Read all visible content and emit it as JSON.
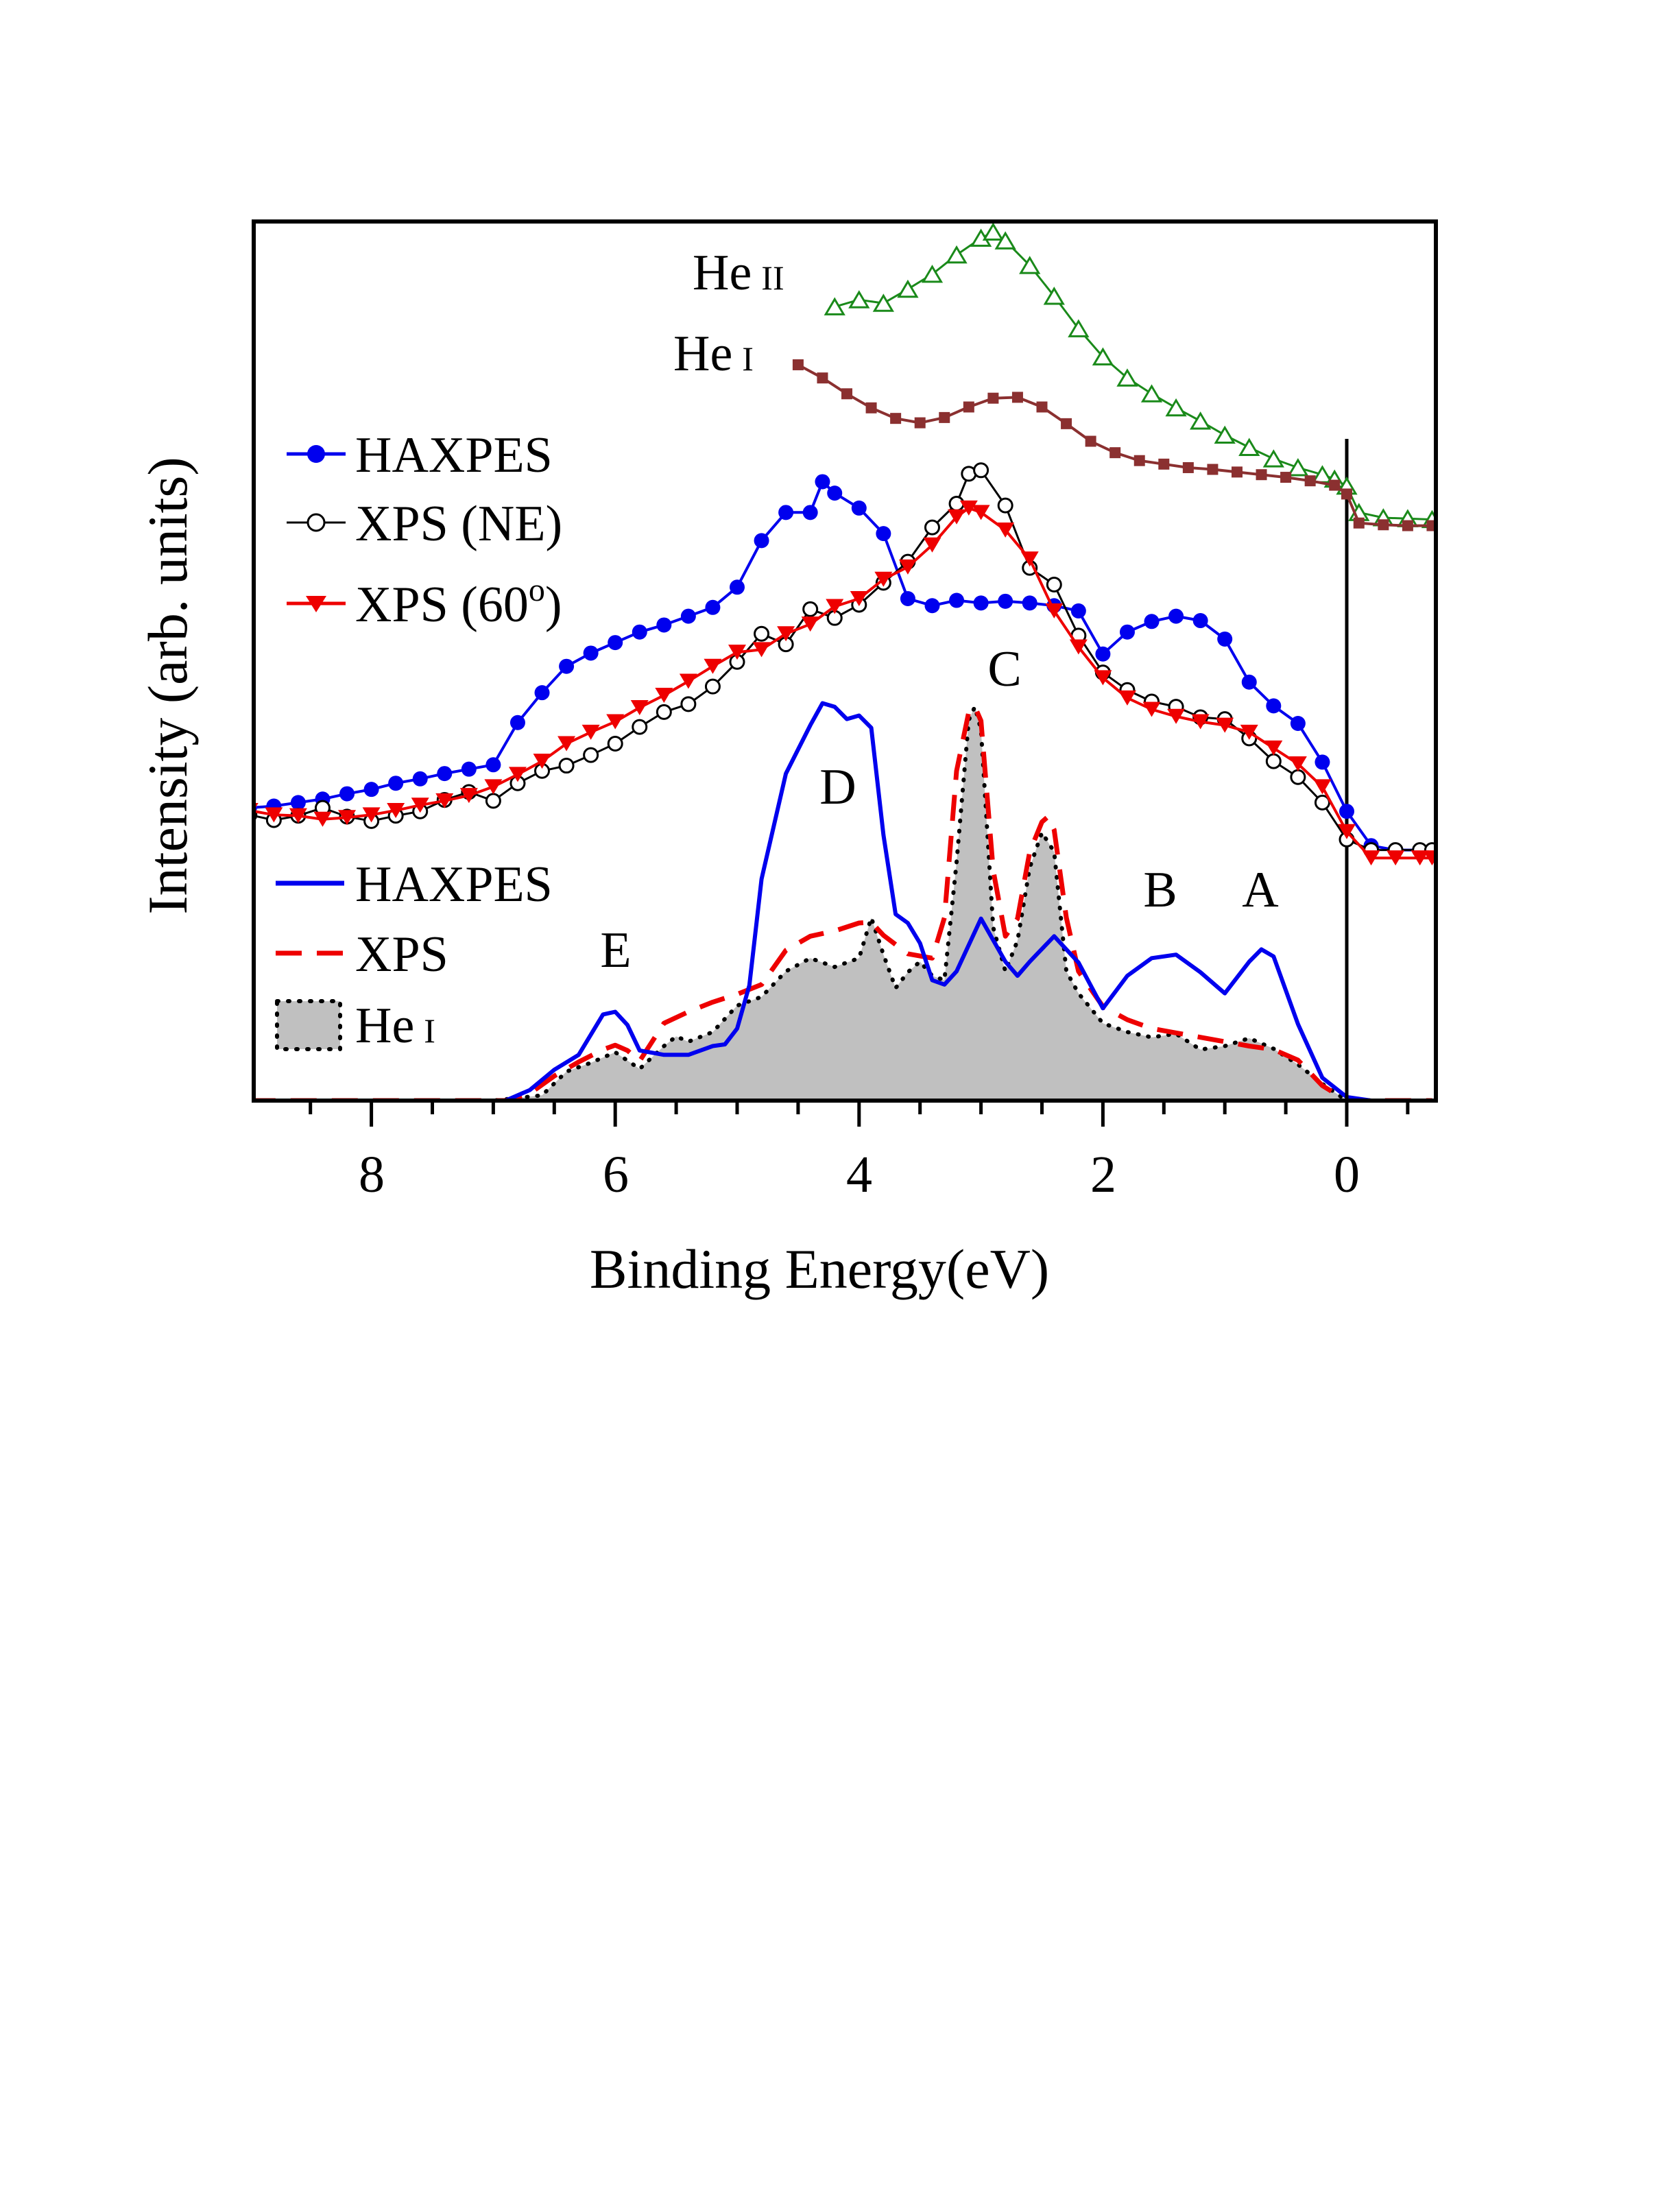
{
  "chart_data": {
    "type": "line",
    "xlabel": "Binding Energy(eV)",
    "ylabel": "Intensity (arb. units)",
    "xlim": [
      9.0,
      -0.7
    ],
    "ylim": [
      0,
      1
    ],
    "x_ticks": [
      8,
      6,
      4,
      2,
      0
    ],
    "x_tick_labels": [
      "8",
      "6",
      "4",
      "2",
      "0"
    ],
    "grid": false,
    "legend_experimental": {
      "position": "upper-left",
      "entries": [
        {
          "label": "HAXPES",
          "color": "#0000ee",
          "marker": "filled-circle"
        },
        {
          "label": "XPS (NE)",
          "color": "#000000",
          "marker": "open-circle"
        },
        {
          "label_main": "XPS (60",
          "label_sup": "o",
          "label_end": ")",
          "color": "#ee0000",
          "marker": "filled-triangle-down"
        }
      ]
    },
    "legend_theory": {
      "position": "lower-left",
      "entries": [
        {
          "label": "HAXPES",
          "color": "#0000ee",
          "style": "solid"
        },
        {
          "label": "XPS",
          "color": "#ee0000",
          "style": "dashed"
        },
        {
          "label_main": "He",
          "label_small": "I",
          "color": "#000000",
          "style": "dotted-filled-gray"
        }
      ]
    },
    "series_labels": [
      {
        "main": "He",
        "small": "II",
        "series": "He II"
      },
      {
        "main": "He",
        "small": "I",
        "series": "He I"
      }
    ],
    "peak_labels": [
      {
        "label": "A",
        "x": 0.72
      },
      {
        "label": "B",
        "x": 1.68
      },
      {
        "label": "C",
        "x": 2.85
      },
      {
        "label": "D",
        "x": 4.15
      },
      {
        "label": "E",
        "x": 6.0
      }
    ],
    "fermi_level": 0,
    "series": [
      {
        "name": "He II",
        "kind": "experimental",
        "color": "#1a8a1a",
        "marker": "open-triangle",
        "x": [
          4.2,
          4.0,
          3.8,
          3.6,
          3.4,
          3.2,
          3.0,
          2.9,
          2.8,
          2.6,
          2.4,
          2.2,
          2.0,
          1.8,
          1.6,
          1.4,
          1.2,
          1.0,
          0.8,
          0.6,
          0.4,
          0.2,
          0.1,
          0.0,
          -0.1,
          -0.3,
          -0.5,
          -0.7
        ],
        "y": [
          0.903,
          0.911,
          0.907,
          0.923,
          0.94,
          0.962,
          0.981,
          0.988,
          0.978,
          0.95,
          0.915,
          0.878,
          0.846,
          0.822,
          0.804,
          0.788,
          0.773,
          0.757,
          0.743,
          0.73,
          0.72,
          0.712,
          0.707,
          0.699,
          0.669,
          0.663,
          0.662,
          0.661
        ]
      },
      {
        "name": "He I",
        "kind": "experimental",
        "color": "#8b3030",
        "marker": "filled-square",
        "x": [
          4.5,
          4.3,
          4.1,
          3.9,
          3.7,
          3.5,
          3.3,
          3.1,
          2.9,
          2.7,
          2.5,
          2.3,
          2.1,
          1.9,
          1.7,
          1.5,
          1.3,
          1.1,
          0.9,
          0.7,
          0.5,
          0.3,
          0.1,
          0.0,
          -0.1,
          -0.3,
          -0.5,
          -0.7
        ],
        "y": [
          0.837,
          0.822,
          0.804,
          0.788,
          0.776,
          0.771,
          0.777,
          0.789,
          0.799,
          0.8,
          0.789,
          0.77,
          0.75,
          0.737,
          0.728,
          0.724,
          0.72,
          0.718,
          0.715,
          0.712,
          0.709,
          0.705,
          0.7,
          0.69,
          0.657,
          0.655,
          0.654,
          0.654
        ]
      },
      {
        "name": "HAXPES",
        "kind": "experimental",
        "color": "#0000ee",
        "marker": "filled-circle",
        "x": [
          9.0,
          8.8,
          8.6,
          8.4,
          8.2,
          8.0,
          7.8,
          7.6,
          7.4,
          7.2,
          7.0,
          6.8,
          6.6,
          6.4,
          6.2,
          6.0,
          5.8,
          5.6,
          5.4,
          5.2,
          5.0,
          4.8,
          4.6,
          4.4,
          4.3,
          4.2,
          4.0,
          3.8,
          3.6,
          3.4,
          3.2,
          3.0,
          2.8,
          2.6,
          2.4,
          2.2,
          2.0,
          1.8,
          1.6,
          1.4,
          1.2,
          1.0,
          0.8,
          0.6,
          0.4,
          0.2,
          0.0,
          -0.2,
          -0.4,
          -0.6,
          -0.7
        ],
        "y": [
          0.333,
          0.335,
          0.339,
          0.343,
          0.349,
          0.354,
          0.361,
          0.366,
          0.372,
          0.377,
          0.382,
          0.43,
          0.464,
          0.494,
          0.509,
          0.521,
          0.533,
          0.541,
          0.551,
          0.561,
          0.584,
          0.637,
          0.669,
          0.669,
          0.704,
          0.691,
          0.674,
          0.645,
          0.571,
          0.563,
          0.569,
          0.566,
          0.568,
          0.566,
          0.563,
          0.557,
          0.508,
          0.533,
          0.545,
          0.551,
          0.546,
          0.525,
          0.476,
          0.449,
          0.429,
          0.385,
          0.329,
          0.29,
          0.285,
          0.285,
          0.285
        ]
      },
      {
        "name": "XPS (NE)",
        "kind": "experimental",
        "color": "#000000",
        "marker": "open-circle",
        "x": [
          9.0,
          8.8,
          8.6,
          8.4,
          8.2,
          8.0,
          7.8,
          7.6,
          7.4,
          7.2,
          7.0,
          6.8,
          6.6,
          6.4,
          6.2,
          6.0,
          5.8,
          5.6,
          5.4,
          5.2,
          5.0,
          4.8,
          4.6,
          4.4,
          4.2,
          4.0,
          3.8,
          3.6,
          3.4,
          3.2,
          3.1,
          3.0,
          2.8,
          2.6,
          2.4,
          2.2,
          2.0,
          1.8,
          1.6,
          1.4,
          1.2,
          1.0,
          0.8,
          0.6,
          0.4,
          0.2,
          0.0,
          -0.2,
          -0.4,
          -0.6,
          -0.7
        ],
        "y": [
          0.325,
          0.319,
          0.324,
          0.333,
          0.323,
          0.318,
          0.324,
          0.329,
          0.342,
          0.351,
          0.341,
          0.361,
          0.375,
          0.381,
          0.393,
          0.406,
          0.425,
          0.442,
          0.451,
          0.471,
          0.499,
          0.531,
          0.519,
          0.559,
          0.549,
          0.564,
          0.589,
          0.613,
          0.652,
          0.679,
          0.713,
          0.717,
          0.677,
          0.606,
          0.587,
          0.529,
          0.487,
          0.467,
          0.454,
          0.448,
          0.436,
          0.434,
          0.412,
          0.386,
          0.368,
          0.339,
          0.297,
          0.285,
          0.285,
          0.285,
          0.285
        ]
      },
      {
        "name": "XPS (60o)",
        "kind": "experimental",
        "color": "#ee0000",
        "marker": "filled-triangle-down",
        "x": [
          9.0,
          8.8,
          8.6,
          8.4,
          8.2,
          8.0,
          7.8,
          7.6,
          7.4,
          7.2,
          7.0,
          6.8,
          6.6,
          6.4,
          6.2,
          6.0,
          5.8,
          5.6,
          5.4,
          5.2,
          5.0,
          4.8,
          4.6,
          4.4,
          4.2,
          4.0,
          3.8,
          3.6,
          3.4,
          3.2,
          3.1,
          3.0,
          2.8,
          2.6,
          2.4,
          2.2,
          2.0,
          1.8,
          1.6,
          1.4,
          1.2,
          1.0,
          0.8,
          0.6,
          0.4,
          0.2,
          0.0,
          -0.2,
          -0.4,
          -0.6,
          -0.7
        ],
        "y": [
          0.33,
          0.325,
          0.324,
          0.32,
          0.322,
          0.325,
          0.33,
          0.336,
          0.341,
          0.347,
          0.357,
          0.371,
          0.386,
          0.406,
          0.419,
          0.431,
          0.447,
          0.461,
          0.477,
          0.494,
          0.51,
          0.513,
          0.531,
          0.542,
          0.562,
          0.571,
          0.593,
          0.607,
          0.632,
          0.664,
          0.674,
          0.669,
          0.649,
          0.616,
          0.557,
          0.516,
          0.481,
          0.458,
          0.445,
          0.437,
          0.431,
          0.427,
          0.419,
          0.401,
          0.383,
          0.357,
          0.306,
          0.276,
          0.276,
          0.276,
          0.276
        ]
      },
      {
        "name": "He I (theory)",
        "kind": "theory",
        "color": "#000000",
        "style": "dotted-filled-gray",
        "x": [
          9.0,
          7.0,
          6.6,
          6.4,
          6.2,
          6.0,
          5.8,
          5.6,
          5.5,
          5.4,
          5.2,
          5.0,
          4.8,
          4.6,
          4.4,
          4.2,
          4.0,
          3.9,
          3.8,
          3.7,
          3.6,
          3.5,
          3.4,
          3.3,
          3.2,
          3.1,
          3.05,
          3.0,
          2.9,
          2.8,
          2.7,
          2.6,
          2.5,
          2.4,
          2.3,
          2.2,
          2.0,
          1.8,
          1.6,
          1.4,
          1.2,
          1.0,
          0.8,
          0.6,
          0.4,
          0.2,
          0.0,
          -0.2,
          -0.7
        ],
        "y": [
          0.0,
          0.0,
          0.006,
          0.033,
          0.043,
          0.055,
          0.036,
          0.062,
          0.073,
          0.067,
          0.078,
          0.108,
          0.118,
          0.147,
          0.162,
          0.152,
          0.162,
          0.208,
          0.166,
          0.128,
          0.146,
          0.158,
          0.142,
          0.137,
          0.271,
          0.433,
          0.448,
          0.422,
          0.197,
          0.147,
          0.182,
          0.265,
          0.305,
          0.283,
          0.147,
          0.122,
          0.088,
          0.078,
          0.072,
          0.076,
          0.058,
          0.062,
          0.071,
          0.059,
          0.041,
          0.019,
          0.0,
          0.0,
          0.0
        ]
      },
      {
        "name": "XPS (theory)",
        "kind": "theory",
        "color": "#ee0000",
        "style": "dashed",
        "x": [
          9.0,
          6.9,
          6.7,
          6.5,
          6.3,
          6.1,
          6.0,
          5.9,
          5.8,
          5.6,
          5.4,
          5.2,
          5.0,
          4.8,
          4.6,
          4.4,
          4.2,
          4.0,
          3.9,
          3.8,
          3.6,
          3.4,
          3.3,
          3.2,
          3.1,
          3.05,
          3.0,
          2.9,
          2.8,
          2.7,
          2.6,
          2.5,
          2.45,
          2.4,
          2.3,
          2.2,
          2.0,
          1.8,
          1.6,
          1.4,
          1.2,
          1.0,
          0.8,
          0.6,
          0.4,
          0.2,
          0.0,
          -0.2,
          -0.7
        ],
        "y": [
          0.0,
          0.0,
          0.008,
          0.028,
          0.044,
          0.058,
          0.063,
          0.057,
          0.045,
          0.088,
          0.101,
          0.112,
          0.121,
          0.132,
          0.171,
          0.187,
          0.193,
          0.202,
          0.203,
          0.188,
          0.167,
          0.162,
          0.208,
          0.375,
          0.442,
          0.448,
          0.432,
          0.262,
          0.187,
          0.207,
          0.283,
          0.317,
          0.323,
          0.308,
          0.208,
          0.147,
          0.107,
          0.092,
          0.082,
          0.077,
          0.072,
          0.067,
          0.062,
          0.058,
          0.046,
          0.017,
          0.0,
          0.0,
          0.0
        ]
      },
      {
        "name": "HAXPES (theory)",
        "kind": "theory",
        "color": "#0000ee",
        "style": "solid",
        "x": [
          9.0,
          6.9,
          6.7,
          6.5,
          6.3,
          6.1,
          6.0,
          5.9,
          5.8,
          5.6,
          5.4,
          5.2,
          5.1,
          5.0,
          4.9,
          4.8,
          4.6,
          4.4,
          4.3,
          4.2,
          4.1,
          4.0,
          3.9,
          3.8,
          3.7,
          3.6,
          3.5,
          3.4,
          3.3,
          3.2,
          3.0,
          2.8,
          2.7,
          2.6,
          2.4,
          2.2,
          2.0,
          1.8,
          1.6,
          1.4,
          1.2,
          1.0,
          0.8,
          0.7,
          0.6,
          0.4,
          0.2,
          0.0,
          -0.2,
          -0.7
        ],
        "y": [
          0.0,
          0.0,
          0.012,
          0.035,
          0.052,
          0.098,
          0.101,
          0.086,
          0.057,
          0.052,
          0.052,
          0.062,
          0.064,
          0.082,
          0.131,
          0.252,
          0.372,
          0.427,
          0.452,
          0.448,
          0.434,
          0.438,
          0.424,
          0.302,
          0.212,
          0.202,
          0.179,
          0.137,
          0.132,
          0.147,
          0.207,
          0.158,
          0.142,
          0.158,
          0.187,
          0.157,
          0.105,
          0.142,
          0.162,
          0.166,
          0.146,
          0.122,
          0.158,
          0.172,
          0.164,
          0.087,
          0.026,
          0.004,
          0.0,
          0.0
        ]
      }
    ]
  }
}
